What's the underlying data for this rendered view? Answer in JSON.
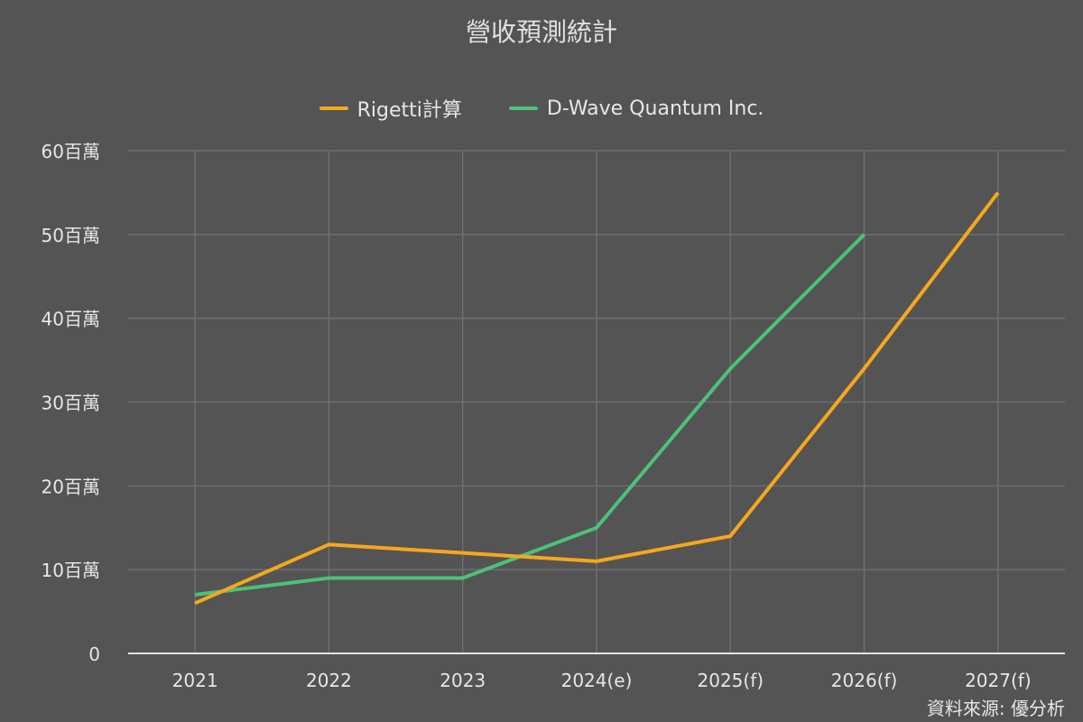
{
  "chart_data": {
    "type": "line",
    "title": "營收預測統計",
    "xlabel": "",
    "ylabel": "",
    "categories": [
      "2021",
      "2022",
      "2023",
      "2024(e)",
      "2025(f)",
      "2026(f)",
      "2027(f)"
    ],
    "series": [
      {
        "name": "Rigetti計算",
        "color": "#f5a81c",
        "values": [
          6,
          13,
          12,
          11,
          14,
          34,
          55
        ]
      },
      {
        "name": "D-Wave Quantum Inc.",
        "color": "#4cc27a",
        "values": [
          7,
          9,
          9,
          15,
          34,
          50,
          null
        ]
      }
    ],
    "ylim": [
      0,
      60
    ],
    "yticks": [
      0,
      10,
      20,
      30,
      40,
      50,
      60
    ],
    "ytick_labels": [
      "0",
      "10百萬",
      "20百萬",
      "30百萬",
      "40百萬",
      "50百萬",
      "60百萬"
    ],
    "grid": true,
    "legend_position": "top",
    "source_note": "資料來源: 優分析"
  },
  "colors": {
    "background": "#545454",
    "grid": "#6e6e6e",
    "axis": "#d8e4ec"
  }
}
